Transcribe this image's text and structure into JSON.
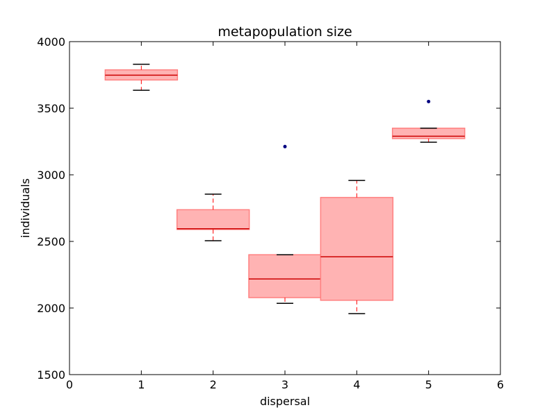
{
  "chart_data": {
    "type": "box",
    "title": "metapopulation size",
    "xlabel": "dispersal",
    "ylabel": "individuals",
    "xlim": [
      0,
      6
    ],
    "ylim": [
      1500,
      4000
    ],
    "xticks": [
      "0",
      "1",
      "2",
      "3",
      "4",
      "5",
      "6"
    ],
    "yticks": [
      "1500",
      "2000",
      "2500",
      "3000",
      "3500",
      "4000"
    ],
    "grid": false,
    "colors": {
      "box_fill": "#ffb3b3",
      "box_edge": "#ff8080",
      "median": "#cc0000",
      "whisker": "#ff0000",
      "cap": "#000000",
      "outlier": "#000080"
    },
    "boxes": [
      {
        "x": 1,
        "whisker_low": 3635,
        "q1": 3712,
        "median": 3748,
        "q3": 3788,
        "whisker_high": 3830,
        "outliers": []
      },
      {
        "x": 2,
        "whisker_low": 2505,
        "q1": 2590,
        "median": 2595,
        "q3": 2738,
        "whisker_high": 2855,
        "outliers": []
      },
      {
        "x": 3,
        "whisker_low": 2035,
        "q1": 2078,
        "median": 2218,
        "q3": 2400,
        "whisker_high": 2400,
        "outliers": [
          3212
        ]
      },
      {
        "x": 4,
        "whisker_low": 1958,
        "q1": 2058,
        "median": 2385,
        "q3": 2830,
        "whisker_high": 2958,
        "outliers": []
      },
      {
        "x": 5,
        "whisker_low": 3245,
        "q1": 3272,
        "median": 3290,
        "q3": 3350,
        "whisker_high": 3350,
        "outliers": [
          3550
        ]
      }
    ]
  }
}
